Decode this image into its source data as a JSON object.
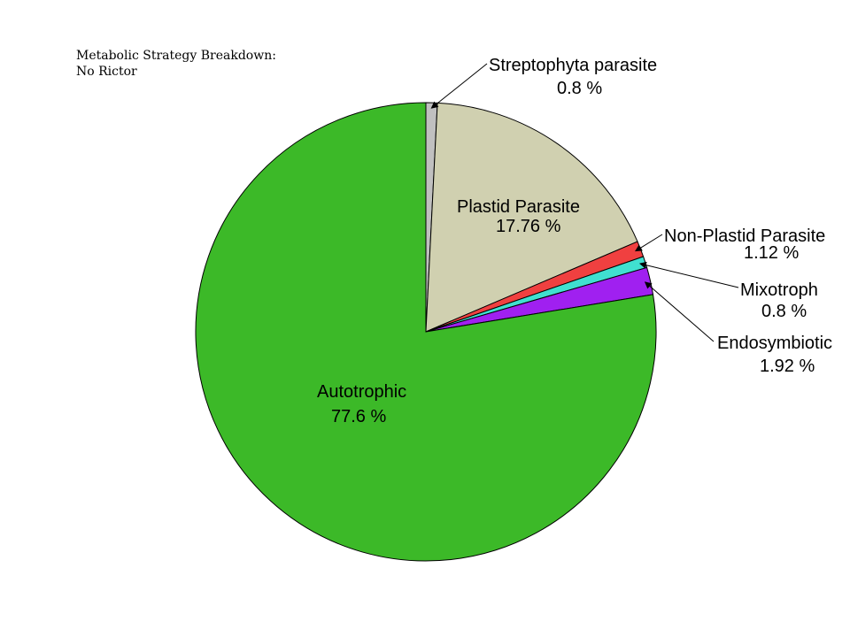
{
  "chart_data": {
    "type": "pie",
    "title_lines": [
      "Metabolic Strategy Breakdown:",
      "No Rictor"
    ],
    "slices": [
      {
        "label": "Streptophyta parasite",
        "value": 0.8,
        "value_text": "0.8 %",
        "color": "#c0c0c0"
      },
      {
        "label": "Plastid Parasite",
        "value": 17.76,
        "value_text": "17.76 %",
        "color": "#d0d0b0"
      },
      {
        "label": "Non-Plastid Parasite",
        "value": 1.12,
        "value_text": "1.12 %",
        "color": "#f04040"
      },
      {
        "label": "Mixotroph",
        "value": 0.8,
        "value_text": "0.8 %",
        "color": "#40e0d0"
      },
      {
        "label": "Endosymbiotic",
        "value": 1.92,
        "value_text": "1.92 %",
        "color": "#a020f0"
      },
      {
        "label": "Autotrophic",
        "value": 77.6,
        "value_text": "77.6 %",
        "color": "#3cb928"
      }
    ],
    "start": "top",
    "direction": "clockwise"
  }
}
